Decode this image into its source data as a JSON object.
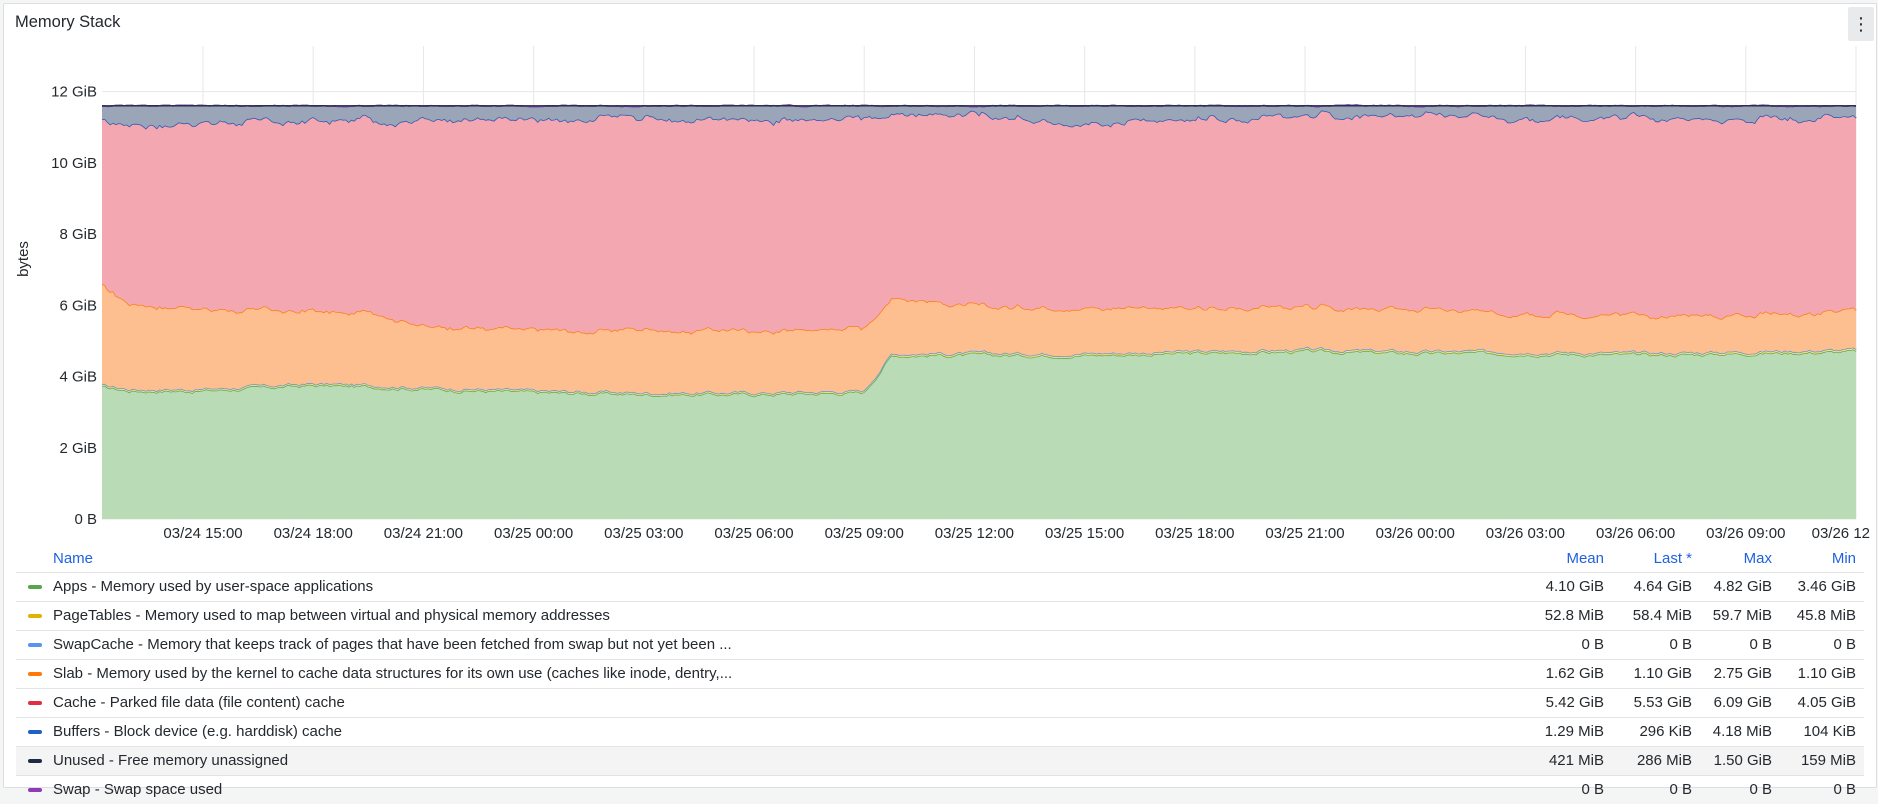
{
  "panel": {
    "title": "Memory Stack",
    "menu_icon": "⋮"
  },
  "chart_data": {
    "type": "area",
    "stacked": true,
    "title": "",
    "ylabel": "bytes",
    "xlabel": "",
    "ylim_gib": [
      0,
      13
    ],
    "y_ticks": [
      "0 B",
      "2 GiB",
      "4 GiB",
      "6 GiB",
      "8 GiB",
      "10 GiB",
      "12 GiB"
    ],
    "x_ticks": [
      "03/24 15:00",
      "03/24 18:00",
      "03/24 21:00",
      "03/25 00:00",
      "03/25 03:00",
      "03/25 06:00",
      "03/25 09:00",
      "03/25 12:00",
      "03/25 15:00",
      "03/25 18:00",
      "03/25 21:00",
      "03/26 00:00",
      "03/26 03:00",
      "03/26 06:00",
      "03/26 09:00",
      "03/26 12"
    ],
    "x": [
      "03/24 12:15",
      "03/24 13:00",
      "03/24 15:00",
      "03/24 18:00",
      "03/24 20:00",
      "03/24 21:00",
      "03/25 00:00",
      "03/25 03:00",
      "03/25 06:00",
      "03/25 09:00",
      "03/25 09:45",
      "03/25 12:00",
      "03/25 15:00",
      "03/25 18:00",
      "03/25 21:00",
      "03/26 00:00",
      "03/26 03:00",
      "03/26 06:00",
      "03/26 09:00",
      "03/26 12:00"
    ],
    "total_gib": 11.6,
    "grid": true,
    "legend_placement": "bottom",
    "series": [
      {
        "name": "Apps - Memory used by user-space applications",
        "color": "#56a64b",
        "fill": "#b9dcb6",
        "values": [
          3.7,
          3.6,
          3.6,
          3.75,
          3.7,
          3.65,
          3.55,
          3.5,
          3.5,
          3.55,
          4.6,
          4.6,
          4.6,
          4.65,
          4.7,
          4.65,
          4.65,
          4.6,
          4.65,
          4.7
        ]
      },
      {
        "name": "PageTables - Memory used to map between virtual and physical memory addresses",
        "color": "#e0b400",
        "fill": "#f2de80",
        "values": [
          0.05,
          0.05,
          0.05,
          0.05,
          0.05,
          0.05,
          0.05,
          0.05,
          0.05,
          0.05,
          0.055,
          0.055,
          0.055,
          0.055,
          0.055,
          0.055,
          0.056,
          0.057,
          0.057,
          0.057
        ]
      },
      {
        "name": "SwapCache - Memory that keeps track of pages that have been fetched from swap but not yet been ...",
        "color": "#5794f2",
        "fill": "#bcd5fa",
        "values": [
          0,
          0,
          0,
          0,
          0,
          0,
          0,
          0,
          0,
          0,
          0,
          0,
          0,
          0,
          0,
          0,
          0,
          0,
          0,
          0
        ]
      },
      {
        "name": "Slab - Memory used by the kernel to cache data structures for its own use (caches like inode, dentry,...",
        "color": "#ff780a",
        "fill": "#fdbf8f",
        "values": [
          2.8,
          2.4,
          2.25,
          2.05,
          2.0,
          1.7,
          1.7,
          1.75,
          1.75,
          1.75,
          1.55,
          1.35,
          1.25,
          1.2,
          1.2,
          1.15,
          1.1,
          1.05,
          1.05,
          1.1
        ]
      },
      {
        "name": "Cache - Parked file data (file content) cache",
        "color": "#e02f44",
        "fill": "#f3a7b1",
        "values": [
          4.6,
          5.0,
          5.25,
          5.35,
          5.45,
          5.8,
          5.9,
          5.95,
          5.95,
          5.9,
          5.15,
          5.35,
          5.15,
          5.35,
          5.35,
          5.45,
          5.5,
          5.55,
          5.5,
          5.45
        ]
      },
      {
        "name": "Buffers - Block device (e.g. harddisk) cache",
        "color": "#1f60c4",
        "fill": "#9aa9bd",
        "values": [
          0.0013,
          0.0013,
          0.0013,
          0.0013,
          0.0013,
          0.0013,
          0.0013,
          0.0013,
          0.0013,
          0.0013,
          0.0013,
          0.0013,
          0.0013,
          0.0013,
          0.0013,
          0.0013,
          0.0013,
          0.0013,
          0.0013,
          0.0003
        ]
      },
      {
        "name": "Unused - Free memory unassigned",
        "color": "#1f2a44",
        "fill": "#9aa6b8",
        "values": [
          0.45,
          0.35,
          0.33,
          0.35,
          0.3,
          0.3,
          0.3,
          0.25,
          0.3,
          0.25,
          0.35,
          0.25,
          0.55,
          0.3,
          0.25,
          0.25,
          0.25,
          0.35,
          0.3,
          0.29
        ]
      },
      {
        "name": "Swap - Swap space used",
        "color": "#8f3bb8",
        "fill": "#d3b3e4",
        "values": [
          0,
          0,
          0,
          0,
          0,
          0,
          0,
          0,
          0,
          0,
          0,
          0,
          0,
          0,
          0,
          0,
          0,
          0,
          0,
          0
        ]
      }
    ]
  },
  "legend": {
    "headers": {
      "name": "Name",
      "mean": "Mean",
      "last": "Last *",
      "max": "Max",
      "min": "Min"
    },
    "rows": [
      {
        "name": "Apps - Memory used by user-space applications",
        "color": "#56a64b",
        "mean": "4.10 GiB",
        "last": "4.64 GiB",
        "max": "4.82 GiB",
        "min": "3.46 GiB"
      },
      {
        "name": "PageTables - Memory used to map between virtual and physical memory addresses",
        "color": "#e0b400",
        "mean": "52.8 MiB",
        "last": "58.4 MiB",
        "max": "59.7 MiB",
        "min": "45.8 MiB"
      },
      {
        "name": "SwapCache - Memory that keeps track of pages that have been fetched from swap but not yet been ...",
        "color": "#5794f2",
        "mean": "0 B",
        "last": "0 B",
        "max": "0 B",
        "min": "0 B"
      },
      {
        "name": "Slab - Memory used by the kernel to cache data structures for its own use (caches like inode, dentry,...",
        "color": "#ff780a",
        "mean": "1.62 GiB",
        "last": "1.10 GiB",
        "max": "2.75 GiB",
        "min": "1.10 GiB"
      },
      {
        "name": "Cache - Parked file data (file content) cache",
        "color": "#e02f44",
        "mean": "5.42 GiB",
        "last": "5.53 GiB",
        "max": "6.09 GiB",
        "min": "4.05 GiB"
      },
      {
        "name": "Buffers - Block device (e.g. harddisk) cache",
        "color": "#1f60c4",
        "mean": "1.29 MiB",
        "last": "296 KiB",
        "max": "4.18 MiB",
        "min": "104 KiB"
      },
      {
        "name": "Unused - Free memory unassigned",
        "color": "#1f2a44",
        "mean": "421 MiB",
        "last": "286 MiB",
        "max": "1.50 GiB",
        "min": "159 MiB"
      },
      {
        "name": "Swap - Swap space used",
        "color": "#8f3bb8",
        "mean": "0 B",
        "last": "0 B",
        "max": "0 B",
        "min": "0 B"
      }
    ]
  }
}
